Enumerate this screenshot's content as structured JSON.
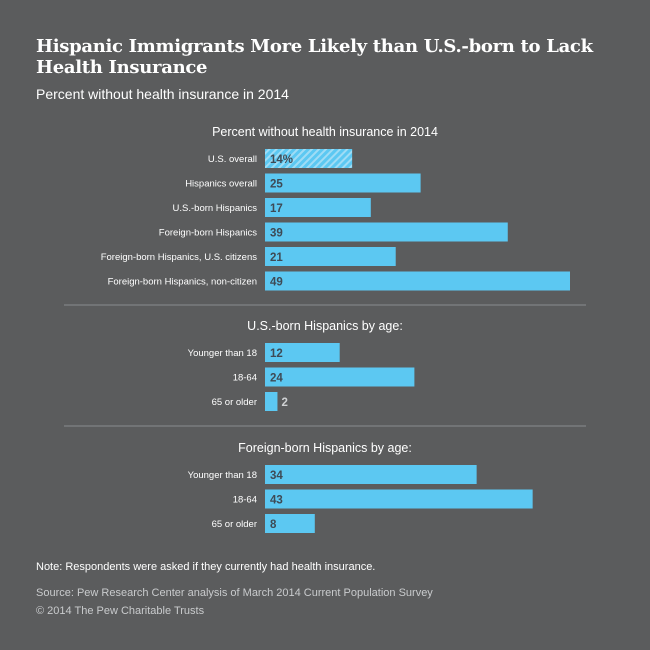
{
  "title": "Hispanic Immigrants More Likely than U.S.-born to Lack Health Insurance",
  "subtitle": "Percent without health insurance in 2014",
  "colors": {
    "background": "#5b5c5d",
    "bar": "#5cc8f2",
    "bar_hatch_stripe": "#9fdcf5",
    "value_text": "#3e4a55",
    "divider": "#8a8c8e"
  },
  "chart_data": [
    {
      "type": "bar",
      "orientation": "horizontal",
      "title": "Percent without health insurance in 2014",
      "categories": [
        "U.S. overall",
        "Hispanics overall",
        "U.S.-born Hispanics",
        "Foreign-born Hispanics",
        "Foreign-born Hispanics, U.S. citizens",
        "Foreign-born Hispanics, non-citizen"
      ],
      "values": [
        14,
        25,
        17,
        39,
        21,
        49
      ],
      "value_labels": [
        "14%",
        "25",
        "17",
        "39",
        "21",
        "49"
      ],
      "xlim": [
        0,
        49
      ]
    },
    {
      "type": "bar",
      "orientation": "horizontal",
      "title": "U.S.-born Hispanics by age:",
      "categories": [
        "Younger than 18",
        "18-64",
        "65 or older"
      ],
      "values": [
        12,
        24,
        2
      ],
      "value_labels": [
        "12",
        "24",
        "2"
      ],
      "xlim": [
        0,
        49
      ]
    },
    {
      "type": "bar",
      "orientation": "horizontal",
      "title": "Foreign-born Hispanics by age:",
      "categories": [
        "Younger than 18",
        "18-64",
        "65 or older"
      ],
      "values": [
        34,
        43,
        8
      ],
      "value_labels": [
        "34",
        "43",
        "8"
      ],
      "xlim": [
        0,
        49
      ]
    }
  ],
  "footer": {
    "note": "Note: Respondents were asked if they currently had health insurance.",
    "source": "Source: Pew Research Center analysis of March 2014 Current Population Survey",
    "copyright": "© 2014 The Pew Charitable Trusts"
  }
}
